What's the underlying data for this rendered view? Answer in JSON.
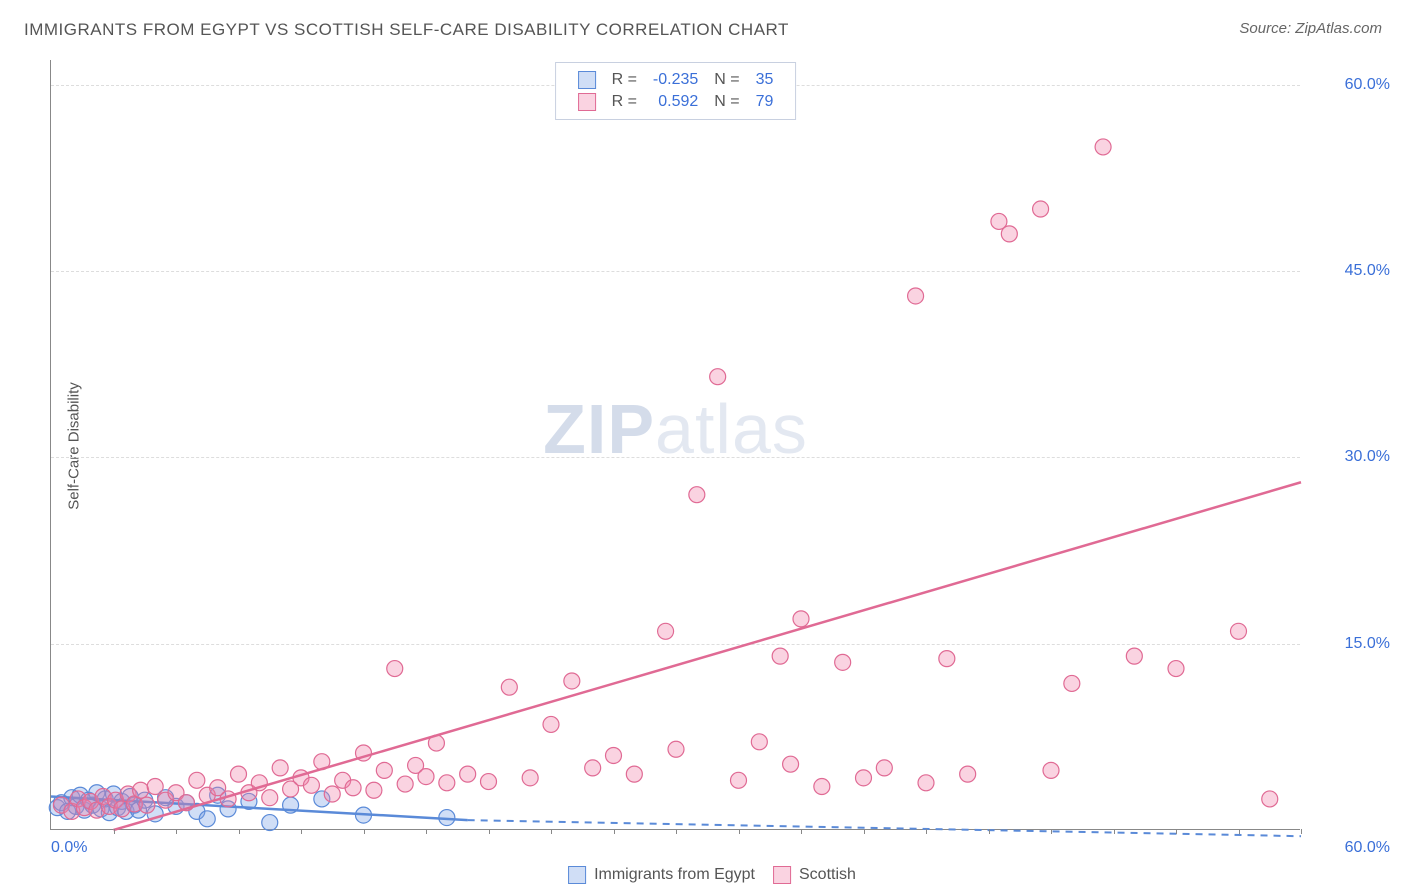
{
  "title": "IMMIGRANTS FROM EGYPT VS SCOTTISH SELF-CARE DISABILITY CORRELATION CHART",
  "source_label": "Source:",
  "source_value": "ZipAtlas.com",
  "ylabel": "Self-Care Disability",
  "watermark_a": "ZIP",
  "watermark_b": "atlas",
  "chart": {
    "type": "scatter",
    "background_color": "#ffffff",
    "grid_color": "#dddddd",
    "axis_color": "#888888",
    "tick_label_color": "#3a6fd8",
    "tick_fontsize": 16,
    "xmin": 0,
    "xmax": 60,
    "ymin": 0,
    "ymax": 62,
    "xticks_minor": [
      3,
      6,
      9,
      12,
      15,
      18,
      21,
      24,
      27,
      30,
      33,
      36,
      39,
      42,
      45,
      48,
      51,
      54,
      57,
      60
    ],
    "yticks": [
      15,
      30,
      45,
      60
    ],
    "ytick_labels": [
      "15.0%",
      "30.0%",
      "45.0%",
      "60.0%"
    ],
    "x_origin_label": "0.0%",
    "x_max_label": "60.0%",
    "marker_radius": 8,
    "marker_stroke_width": 1.2,
    "trend_line_width": 2.5,
    "trend_dash_width": 2,
    "series": [
      {
        "name": "Immigrants from Egypt",
        "fill": "rgba(120,160,230,0.35)",
        "stroke": "#5a8ad8",
        "r_value": "-0.235",
        "n_value": "35",
        "trend": {
          "x1": 0,
          "y1": 2.7,
          "x2": 20,
          "y2": 0.8,
          "solid_until_x": 20,
          "extend_to_x": 60,
          "extend_y": -0.5
        },
        "points": [
          [
            0.3,
            1.8
          ],
          [
            0.5,
            2.2
          ],
          [
            0.8,
            1.5
          ],
          [
            1.0,
            2.6
          ],
          [
            1.2,
            1.9
          ],
          [
            1.4,
            2.8
          ],
          [
            1.6,
            1.6
          ],
          [
            1.8,
            2.4
          ],
          [
            2.0,
            2.0
          ],
          [
            2.2,
            3.0
          ],
          [
            2.4,
            1.7
          ],
          [
            2.6,
            2.5
          ],
          [
            2.8,
            1.4
          ],
          [
            3.0,
            2.9
          ],
          [
            3.2,
            1.8
          ],
          [
            3.4,
            2.3
          ],
          [
            3.6,
            1.5
          ],
          [
            3.8,
            2.7
          ],
          [
            4.0,
            2.0
          ],
          [
            4.2,
            1.6
          ],
          [
            4.5,
            2.4
          ],
          [
            5.0,
            1.3
          ],
          [
            5.5,
            2.6
          ],
          [
            6.0,
            1.9
          ],
          [
            6.5,
            2.2
          ],
          [
            7.0,
            1.5
          ],
          [
            7.5,
            0.9
          ],
          [
            8.0,
            2.8
          ],
          [
            8.5,
            1.7
          ],
          [
            9.5,
            2.3
          ],
          [
            10.5,
            0.6
          ],
          [
            11.5,
            2.0
          ],
          [
            13.0,
            2.5
          ],
          [
            15.0,
            1.2
          ],
          [
            19.0,
            1.0
          ]
        ]
      },
      {
        "name": "Scottish",
        "fill": "rgba(240,130,170,0.35)",
        "stroke": "#e06a94",
        "r_value": "0.592",
        "n_value": "79",
        "trend": {
          "x1": 3,
          "y1": 0,
          "x2": 60,
          "y2": 28,
          "solid_until_x": 60
        },
        "points": [
          [
            0.5,
            2.0
          ],
          [
            1.0,
            1.5
          ],
          [
            1.3,
            2.5
          ],
          [
            1.6,
            1.8
          ],
          [
            1.9,
            2.3
          ],
          [
            2.2,
            1.6
          ],
          [
            2.5,
            2.7
          ],
          [
            2.8,
            1.9
          ],
          [
            3.1,
            2.4
          ],
          [
            3.4,
            1.7
          ],
          [
            3.7,
            2.9
          ],
          [
            4.0,
            2.1
          ],
          [
            4.3,
            3.2
          ],
          [
            4.6,
            2.0
          ],
          [
            5.0,
            3.5
          ],
          [
            5.5,
            2.4
          ],
          [
            6.0,
            3.0
          ],
          [
            6.5,
            2.2
          ],
          [
            7.0,
            4.0
          ],
          [
            7.5,
            2.8
          ],
          [
            8.0,
            3.4
          ],
          [
            8.5,
            2.5
          ],
          [
            9.0,
            4.5
          ],
          [
            9.5,
            3.0
          ],
          [
            10.0,
            3.8
          ],
          [
            10.5,
            2.6
          ],
          [
            11.0,
            5.0
          ],
          [
            11.5,
            3.3
          ],
          [
            12.0,
            4.2
          ],
          [
            12.5,
            3.6
          ],
          [
            13.0,
            5.5
          ],
          [
            13.5,
            2.9
          ],
          [
            14.0,
            4.0
          ],
          [
            14.5,
            3.4
          ],
          [
            15.0,
            6.2
          ],
          [
            15.5,
            3.2
          ],
          [
            16.0,
            4.8
          ],
          [
            16.5,
            13.0
          ],
          [
            17.0,
            3.7
          ],
          [
            17.5,
            5.2
          ],
          [
            18.0,
            4.3
          ],
          [
            18.5,
            7.0
          ],
          [
            19.0,
            3.8
          ],
          [
            20.0,
            4.5
          ],
          [
            21.0,
            3.9
          ],
          [
            22.0,
            11.5
          ],
          [
            23.0,
            4.2
          ],
          [
            24.0,
            8.5
          ],
          [
            25.0,
            12.0
          ],
          [
            26.0,
            5.0
          ],
          [
            27.0,
            6.0
          ],
          [
            28.0,
            4.5
          ],
          [
            29.5,
            16.0
          ],
          [
            30.0,
            6.5
          ],
          [
            31.0,
            27.0
          ],
          [
            32.0,
            36.5
          ],
          [
            33.0,
            4.0
          ],
          [
            34.0,
            7.1
          ],
          [
            35.0,
            14.0
          ],
          [
            35.5,
            5.3
          ],
          [
            36.0,
            17.0
          ],
          [
            37.0,
            3.5
          ],
          [
            38.0,
            13.5
          ],
          [
            39.0,
            4.2
          ],
          [
            40.0,
            5.0
          ],
          [
            41.5,
            43.0
          ],
          [
            42.0,
            3.8
          ],
          [
            43.0,
            13.8
          ],
          [
            44.0,
            4.5
          ],
          [
            45.5,
            49.0
          ],
          [
            46.0,
            48.0
          ],
          [
            47.5,
            50.0
          ],
          [
            48.0,
            4.8
          ],
          [
            49.0,
            11.8
          ],
          [
            50.5,
            55.0
          ],
          [
            52.0,
            14.0
          ],
          [
            54.0,
            13.0
          ],
          [
            57.0,
            16.0
          ],
          [
            58.5,
            2.5
          ]
        ]
      }
    ],
    "legend_top": {
      "R_label": "R =",
      "N_label": "N ="
    },
    "legend_bottom": {
      "items": [
        "Immigrants from Egypt",
        "Scottish"
      ]
    }
  }
}
